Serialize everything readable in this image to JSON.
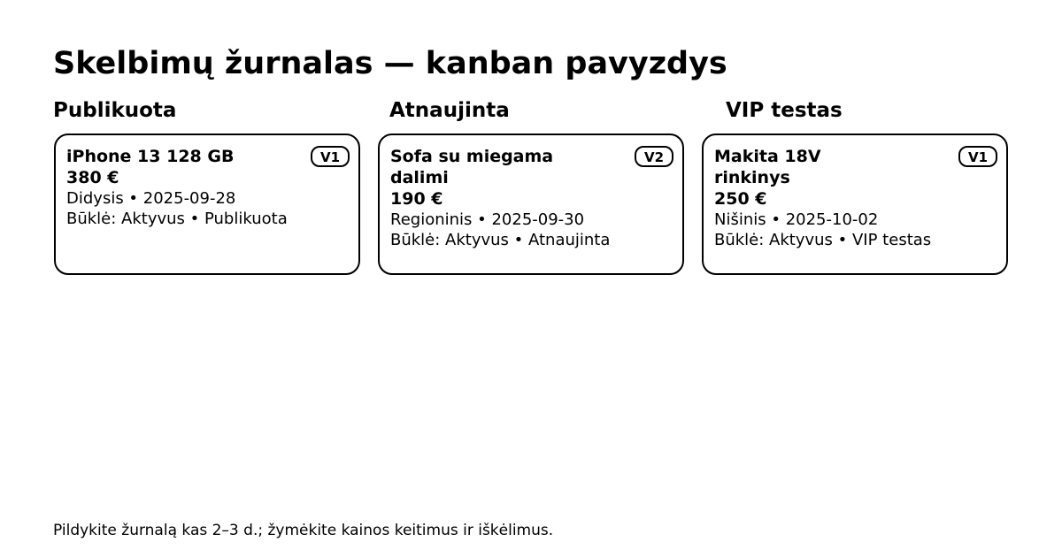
{
  "page": {
    "title": "Skelbimų žurnalas — kanban pavyzdys"
  },
  "columns": [
    {
      "label": "Publikuota",
      "card": {
        "name": "iPhone 13 128 GB",
        "price": "380 €",
        "meta1": "Didysis • 2025-09-28",
        "meta2": "Būklė: Aktyvus • Publikuota",
        "badge": "V1"
      }
    },
    {
      "label": "Atnaujinta",
      "card": {
        "name": "Sofa su miegama dalimi",
        "price": "190 €",
        "meta1": "Regioninis • 2025-09-30",
        "meta2": "Būklė: Aktyvus • Atnaujinta",
        "badge": "V2"
      }
    },
    {
      "label": "VIP testas",
      "card": {
        "name": "Makita 18V rinkinys",
        "price": "250 €",
        "meta1": "Nišinis • 2025-10-02",
        "meta2": "Būklė: Aktyvus • VIP testas",
        "badge": "V1"
      }
    }
  ],
  "footer": {
    "note": "Pildykite žurnalą kas 2–3 d.; žymėkite kainos keitimus ir iškėlimus."
  }
}
